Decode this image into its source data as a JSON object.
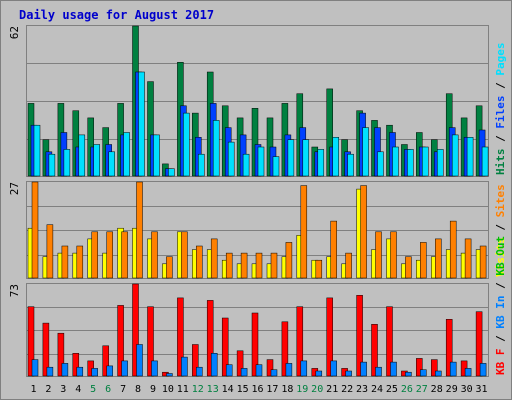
{
  "chart_data": {
    "type": "bar",
    "title": "Daily usage for August 2017",
    "colors": {
      "hits": "#008040",
      "files": "#0040ff",
      "pages": "#00e0ff",
      "visits": "#ffff00",
      "sites": "#ff8000",
      "kb_f": "#ff0000",
      "kb_in": "#0080ff",
      "kb_out": "#00c000",
      "weekday_label": "#000000",
      "weekend_label": "#008040",
      "frame": "#c0c0c0",
      "panel_bg": "#c0c0c0",
      "grid": "#808080",
      "title": "#0000cc"
    },
    "days": [
      "1",
      "2",
      "3",
      "4",
      "5",
      "6",
      "7",
      "8",
      "9",
      "10",
      "11",
      "12",
      "13",
      "14",
      "15",
      "16",
      "17",
      "18",
      "19",
      "20",
      "21",
      "22",
      "23",
      "24",
      "25",
      "26",
      "27",
      "28",
      "29",
      "30",
      "31"
    ],
    "weekend_days": [
      "5",
      "6",
      "12",
      "13",
      "19",
      "20",
      "26",
      "27"
    ],
    "panels": [
      {
        "id": "top",
        "ymax_label": "62",
        "ylim": [
          0,
          62
        ],
        "legend": [
          {
            "text": "Hits",
            "color": "#008040"
          },
          {
            "text": " / ",
            "color": "#000000"
          },
          {
            "text": "Files",
            "color": "#0040ff"
          },
          {
            "text": " / ",
            "color": "#000000"
          },
          {
            "text": "Pages",
            "color": "#00e0ff"
          }
        ],
        "series": [
          {
            "name": "Hits",
            "color": "#008040",
            "values": [
              30,
              15,
              30,
              27,
              24,
              20,
              30,
              62,
              39,
              5,
              47,
              26,
              43,
              29,
              24,
              28,
              24,
              30,
              34,
              12,
              36,
              15,
              27,
              23,
              21,
              13,
              18,
              15,
              34,
              24,
              29
            ]
          },
          {
            "name": "Files",
            "color": "#0040ff",
            "values": [
              21,
              10,
              18,
              12,
              12,
              13,
              17,
              43,
              17,
              3,
              29,
              16,
              30,
              20,
              17,
              13,
              12,
              17,
              20,
              10,
              12,
              10,
              26,
              20,
              18,
              11,
              12,
              10,
              20,
              16,
              19
            ]
          },
          {
            "name": "Pages",
            "color": "#00e0ff",
            "values": [
              21,
              9,
              11,
              17,
              13,
              10,
              18,
              43,
              17,
              3,
              26,
              9,
              23,
              14,
              9,
              12,
              8,
              15,
              15,
              11,
              16,
              9,
              20,
              10,
              12,
              11,
              12,
              11,
              17,
              16,
              12
            ]
          }
        ]
      },
      {
        "id": "middle",
        "ymax_label": "27",
        "ylim": [
          0,
          27
        ],
        "legend": [
          {
            "text": "Visits",
            "color": "#ffff00"
          },
          {
            "text": " / ",
            "color": "#000000"
          },
          {
            "text": "Sites",
            "color": "#ff8000"
          }
        ],
        "series": [
          {
            "name": "Visits",
            "color": "#ffff00",
            "values": [
              14,
              6,
              7,
              7,
              11,
              7,
              14,
              14,
              11,
              4,
              13,
              8,
              8,
              5,
              4,
              4,
              4,
              6,
              12,
              5,
              6,
              4,
              25,
              8,
              11,
              4,
              5,
              6,
              8,
              7,
              8
            ]
          },
          {
            "name": "Sites",
            "color": "#ff8000",
            "values": [
              27,
              15,
              9,
              9,
              13,
              13,
              13,
              27,
              13,
              6,
              13,
              9,
              11,
              7,
              7,
              7,
              7,
              10,
              26,
              5,
              16,
              7,
              26,
              13,
              13,
              6,
              10,
              11,
              16,
              11,
              9
            ]
          }
        ]
      },
      {
        "id": "bottom",
        "ymax_label": "73",
        "ylim": [
          0,
          73
        ],
        "legend": [
          {
            "text": "KB F",
            "color": "#ff0000"
          },
          {
            "text": " / ",
            "color": "#000000"
          },
          {
            "text": "KB In",
            "color": "#0080ff"
          },
          {
            "text": " / ",
            "color": "#000000"
          },
          {
            "text": "KB Out",
            "color": "#00c000"
          }
        ],
        "series": [
          {
            "name": "KB F",
            "color": "#ff0000",
            "values": [
              55,
              42,
              34,
              18,
              12,
              24,
              56,
              73,
              55,
              3,
              62,
              25,
              60,
              46,
              20,
              50,
              13,
              43,
              55,
              6,
              62,
              6,
              64,
              41,
              55,
              4,
              14,
              13,
              45,
              12,
              51
            ]
          },
          {
            "name": "KB In",
            "color": "#0080ff",
            "values": [
              13,
              7,
              10,
              7,
              6,
              8,
              12,
              25,
              12,
              2,
              15,
              7,
              18,
              9,
              6,
              9,
              5,
              10,
              12,
              4,
              12,
              4,
              11,
              7,
              11,
              3,
              5,
              4,
              11,
              6,
              10
            ]
          }
        ]
      }
    ]
  }
}
